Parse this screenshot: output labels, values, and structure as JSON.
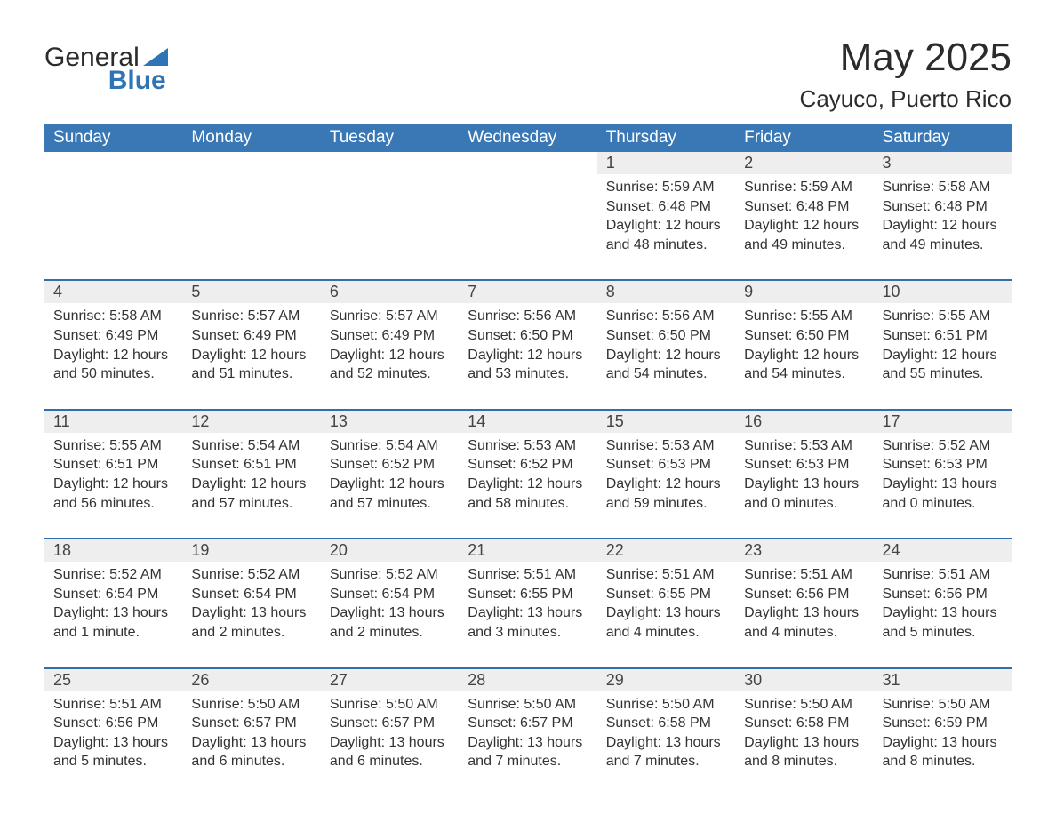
{
  "brand": {
    "word1": "General",
    "word2": "Blue",
    "logo_color": "#2f75b5"
  },
  "title": "May 2025",
  "location": "Cayuco, Puerto Rico",
  "colors": {
    "header_bg": "#3a78b5",
    "header_text": "#ffffff",
    "daynum_bg": "#eeeeee",
    "row_border": "#2f6fab",
    "body_text": "#333333",
    "page_bg": "#ffffff"
  },
  "typography": {
    "title_fontsize": 44,
    "location_fontsize": 26,
    "dow_fontsize": 19,
    "daynum_fontsize": 18,
    "detail_fontsize": 16,
    "font_family": "Arial"
  },
  "days_of_week": [
    "Sunday",
    "Monday",
    "Tuesday",
    "Wednesday",
    "Thursday",
    "Friday",
    "Saturday"
  ],
  "weeks": [
    {
      "cells": [
        null,
        null,
        null,
        null,
        {
          "n": "1",
          "sunrise": "Sunrise: 5:59 AM",
          "sunset": "Sunset: 6:48 PM",
          "daylight": "Daylight: 12 hours and 48 minutes."
        },
        {
          "n": "2",
          "sunrise": "Sunrise: 5:59 AM",
          "sunset": "Sunset: 6:48 PM",
          "daylight": "Daylight: 12 hours and 49 minutes."
        },
        {
          "n": "3",
          "sunrise": "Sunrise: 5:58 AM",
          "sunset": "Sunset: 6:48 PM",
          "daylight": "Daylight: 12 hours and 49 minutes."
        }
      ]
    },
    {
      "cells": [
        {
          "n": "4",
          "sunrise": "Sunrise: 5:58 AM",
          "sunset": "Sunset: 6:49 PM",
          "daylight": "Daylight: 12 hours and 50 minutes."
        },
        {
          "n": "5",
          "sunrise": "Sunrise: 5:57 AM",
          "sunset": "Sunset: 6:49 PM",
          "daylight": "Daylight: 12 hours and 51 minutes."
        },
        {
          "n": "6",
          "sunrise": "Sunrise: 5:57 AM",
          "sunset": "Sunset: 6:49 PM",
          "daylight": "Daylight: 12 hours and 52 minutes."
        },
        {
          "n": "7",
          "sunrise": "Sunrise: 5:56 AM",
          "sunset": "Sunset: 6:50 PM",
          "daylight": "Daylight: 12 hours and 53 minutes."
        },
        {
          "n": "8",
          "sunrise": "Sunrise: 5:56 AM",
          "sunset": "Sunset: 6:50 PM",
          "daylight": "Daylight: 12 hours and 54 minutes."
        },
        {
          "n": "9",
          "sunrise": "Sunrise: 5:55 AM",
          "sunset": "Sunset: 6:50 PM",
          "daylight": "Daylight: 12 hours and 54 minutes."
        },
        {
          "n": "10",
          "sunrise": "Sunrise: 5:55 AM",
          "sunset": "Sunset: 6:51 PM",
          "daylight": "Daylight: 12 hours and 55 minutes."
        }
      ]
    },
    {
      "cells": [
        {
          "n": "11",
          "sunrise": "Sunrise: 5:55 AM",
          "sunset": "Sunset: 6:51 PM",
          "daylight": "Daylight: 12 hours and 56 minutes."
        },
        {
          "n": "12",
          "sunrise": "Sunrise: 5:54 AM",
          "sunset": "Sunset: 6:51 PM",
          "daylight": "Daylight: 12 hours and 57 minutes."
        },
        {
          "n": "13",
          "sunrise": "Sunrise: 5:54 AM",
          "sunset": "Sunset: 6:52 PM",
          "daylight": "Daylight: 12 hours and 57 minutes."
        },
        {
          "n": "14",
          "sunrise": "Sunrise: 5:53 AM",
          "sunset": "Sunset: 6:52 PM",
          "daylight": "Daylight: 12 hours and 58 minutes."
        },
        {
          "n": "15",
          "sunrise": "Sunrise: 5:53 AM",
          "sunset": "Sunset: 6:53 PM",
          "daylight": "Daylight: 12 hours and 59 minutes."
        },
        {
          "n": "16",
          "sunrise": "Sunrise: 5:53 AM",
          "sunset": "Sunset: 6:53 PM",
          "daylight": "Daylight: 13 hours and 0 minutes."
        },
        {
          "n": "17",
          "sunrise": "Sunrise: 5:52 AM",
          "sunset": "Sunset: 6:53 PM",
          "daylight": "Daylight: 13 hours and 0 minutes."
        }
      ]
    },
    {
      "cells": [
        {
          "n": "18",
          "sunrise": "Sunrise: 5:52 AM",
          "sunset": "Sunset: 6:54 PM",
          "daylight": "Daylight: 13 hours and 1 minute."
        },
        {
          "n": "19",
          "sunrise": "Sunrise: 5:52 AM",
          "sunset": "Sunset: 6:54 PM",
          "daylight": "Daylight: 13 hours and 2 minutes."
        },
        {
          "n": "20",
          "sunrise": "Sunrise: 5:52 AM",
          "sunset": "Sunset: 6:54 PM",
          "daylight": "Daylight: 13 hours and 2 minutes."
        },
        {
          "n": "21",
          "sunrise": "Sunrise: 5:51 AM",
          "sunset": "Sunset: 6:55 PM",
          "daylight": "Daylight: 13 hours and 3 minutes."
        },
        {
          "n": "22",
          "sunrise": "Sunrise: 5:51 AM",
          "sunset": "Sunset: 6:55 PM",
          "daylight": "Daylight: 13 hours and 4 minutes."
        },
        {
          "n": "23",
          "sunrise": "Sunrise: 5:51 AM",
          "sunset": "Sunset: 6:56 PM",
          "daylight": "Daylight: 13 hours and 4 minutes."
        },
        {
          "n": "24",
          "sunrise": "Sunrise: 5:51 AM",
          "sunset": "Sunset: 6:56 PM",
          "daylight": "Daylight: 13 hours and 5 minutes."
        }
      ]
    },
    {
      "cells": [
        {
          "n": "25",
          "sunrise": "Sunrise: 5:51 AM",
          "sunset": "Sunset: 6:56 PM",
          "daylight": "Daylight: 13 hours and 5 minutes."
        },
        {
          "n": "26",
          "sunrise": "Sunrise: 5:50 AM",
          "sunset": "Sunset: 6:57 PM",
          "daylight": "Daylight: 13 hours and 6 minutes."
        },
        {
          "n": "27",
          "sunrise": "Sunrise: 5:50 AM",
          "sunset": "Sunset: 6:57 PM",
          "daylight": "Daylight: 13 hours and 6 minutes."
        },
        {
          "n": "28",
          "sunrise": "Sunrise: 5:50 AM",
          "sunset": "Sunset: 6:57 PM",
          "daylight": "Daylight: 13 hours and 7 minutes."
        },
        {
          "n": "29",
          "sunrise": "Sunrise: 5:50 AM",
          "sunset": "Sunset: 6:58 PM",
          "daylight": "Daylight: 13 hours and 7 minutes."
        },
        {
          "n": "30",
          "sunrise": "Sunrise: 5:50 AM",
          "sunset": "Sunset: 6:58 PM",
          "daylight": "Daylight: 13 hours and 8 minutes."
        },
        {
          "n": "31",
          "sunrise": "Sunrise: 5:50 AM",
          "sunset": "Sunset: 6:59 PM",
          "daylight": "Daylight: 13 hours and 8 minutes."
        }
      ]
    }
  ]
}
